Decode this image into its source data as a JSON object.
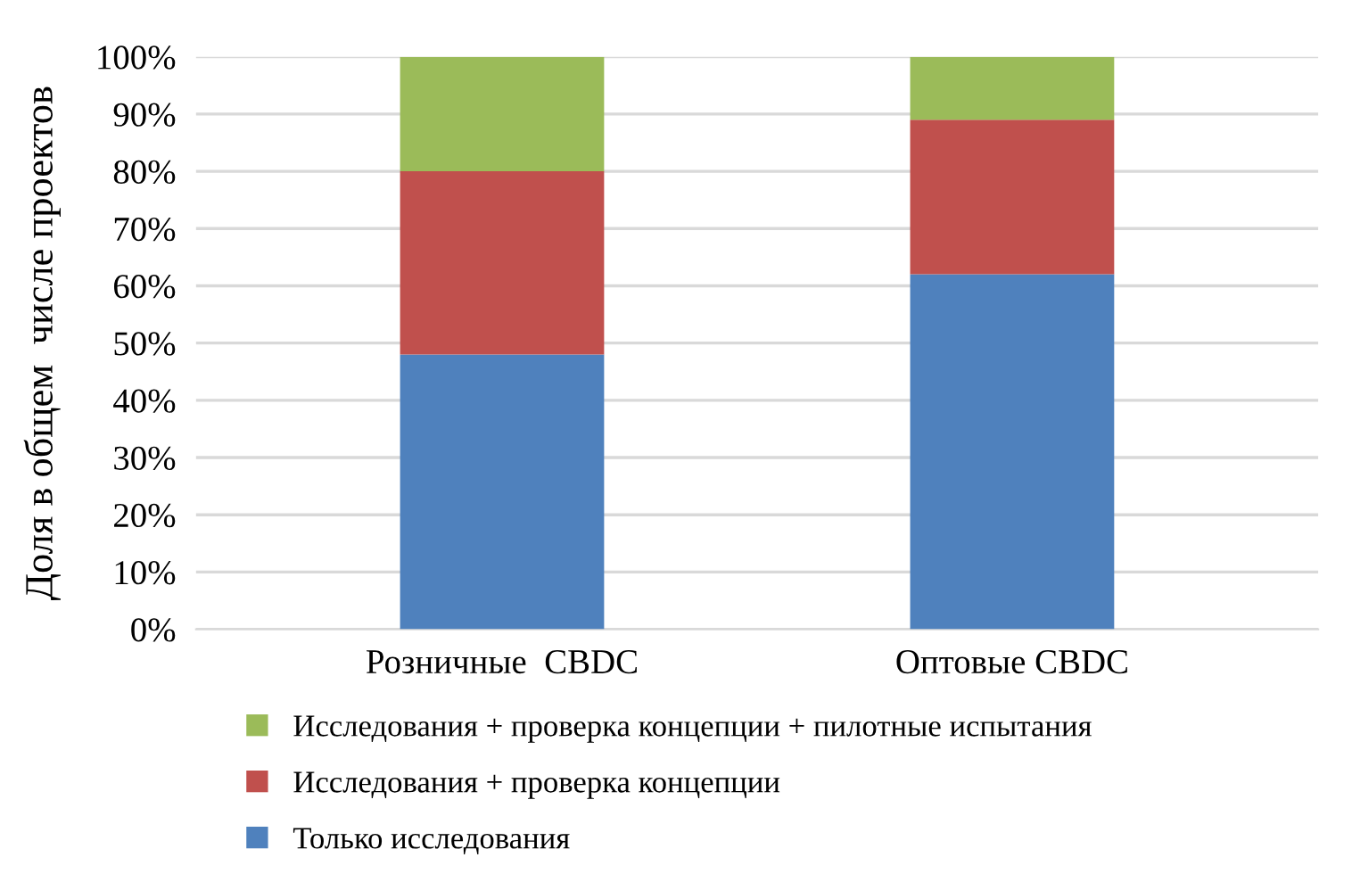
{
  "chart_data": {
    "type": "bar",
    "stacked": true,
    "ylabel": "Доля в общем  числе проектов",
    "categories": [
      "Розничные  CBDC",
      "Оптовые CBDC"
    ],
    "series": [
      {
        "name": "Только исследования",
        "color": "#4f81bd",
        "values": [
          48,
          62
        ]
      },
      {
        "name": "Исследования + проверка концепции",
        "color": "#c0504d",
        "values": [
          32,
          27
        ]
      },
      {
        "name": "Исследования + проверка концепции + пилотные испытания",
        "color": "#9bbb59",
        "values": [
          20,
          11
        ]
      }
    ],
    "ylim": [
      0,
      100
    ],
    "yticks": [
      {
        "value": 0,
        "label": "0%"
      },
      {
        "value": 10,
        "label": "10%"
      },
      {
        "value": 20,
        "label": "20%"
      },
      {
        "value": 30,
        "label": "30%"
      },
      {
        "value": 40,
        "label": "40%"
      },
      {
        "value": 50,
        "label": "50%"
      },
      {
        "value": 60,
        "label": "60%"
      },
      {
        "value": 70,
        "label": "70%"
      },
      {
        "value": 80,
        "label": "80%"
      },
      {
        "value": 90,
        "label": "90%"
      },
      {
        "value": 100,
        "label": "100%"
      }
    ],
    "grid": "y",
    "legend": "bottom"
  }
}
